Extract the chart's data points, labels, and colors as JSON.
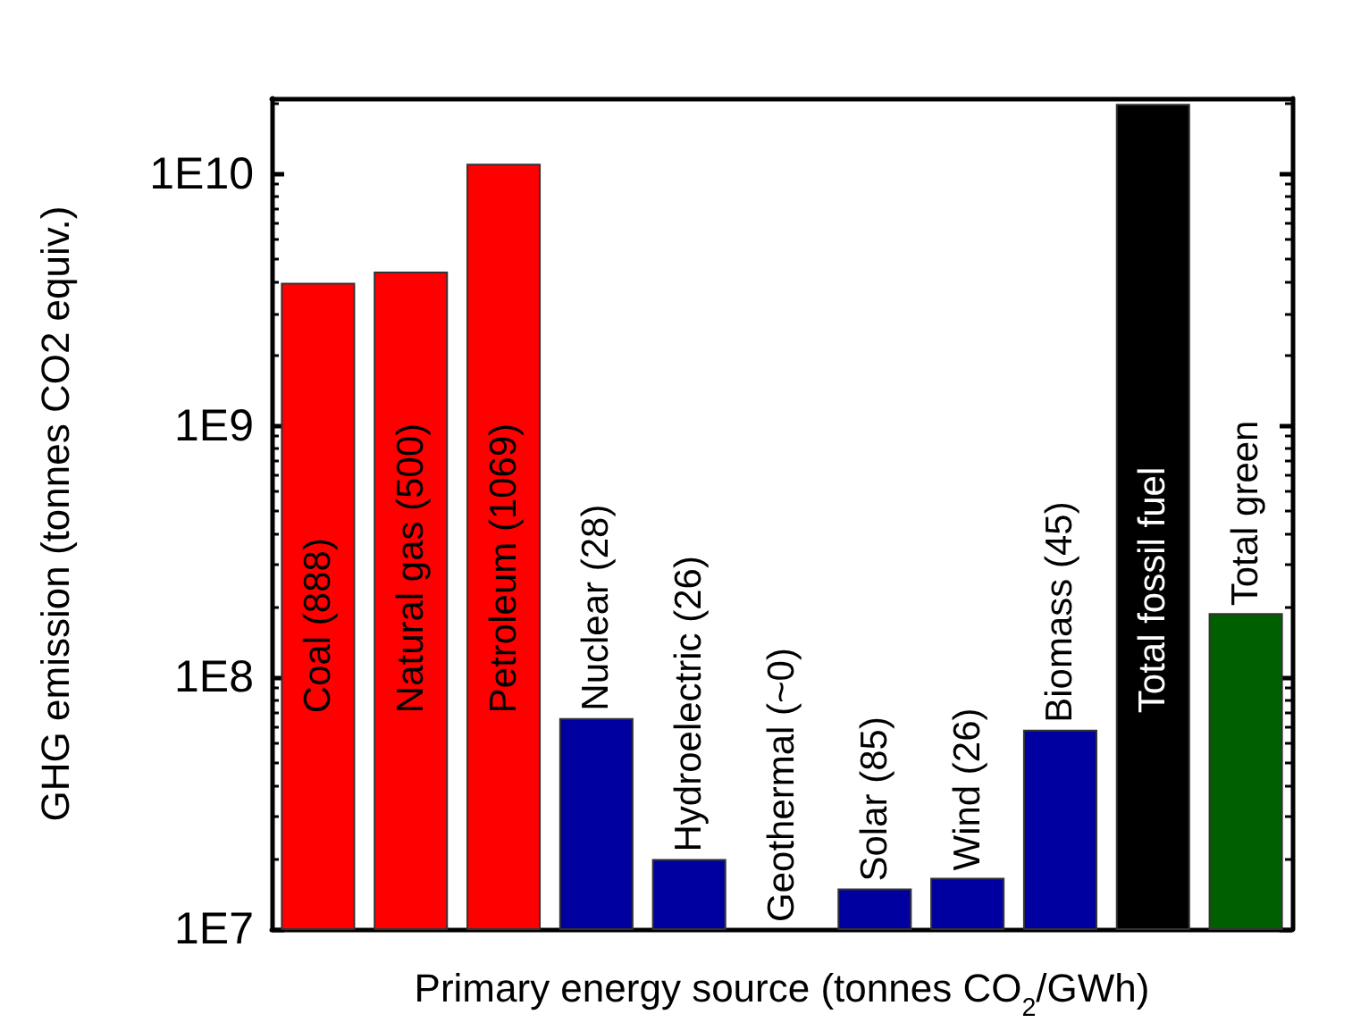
{
  "chart_data": {
    "type": "bar",
    "xlabel": "Primary energy source (tonnes CO$_{2}$/GWh)",
    "ylabel": "GHG emission (tonnes CO2 equiv.)",
    "categories": [
      "Coal (888)",
      "Natural gas (500)",
      "Petroleum (1069)",
      "Nuclear (28)",
      "Hydroelectric (26)",
      "Geothermal (~0)",
      "Solar (85)",
      "Wind (26)",
      "Biomass (45)",
      "Total fossil fuel",
      "Total green"
    ],
    "values": [
      3700000000,
      4100000000,
      11000000000,
      69000000,
      19000000,
      null,
      14500000,
      16000000,
      62000000,
      19000000000,
      180000000
    ],
    "colors": [
      "#ff0000",
      "#ff0000",
      "#ff0000",
      "#0000a0",
      "#0000a0",
      "#0000a0",
      "#0000a0",
      "#0000a0",
      "#0000a0",
      "#000000",
      "#006000"
    ],
    "log": "y",
    "ylim": [
      10000000,
      20000000000
    ],
    "yticks": [
      {
        "value": 10000000,
        "label": "1E7"
      },
      {
        "value": 100000000,
        "label": "1E8"
      },
      {
        "value": 1000000000,
        "label": "1E9"
      },
      {
        "value": 10000000000,
        "label": "1E10"
      }
    ],
    "tick_labels": "y",
    "grid": false
  }
}
